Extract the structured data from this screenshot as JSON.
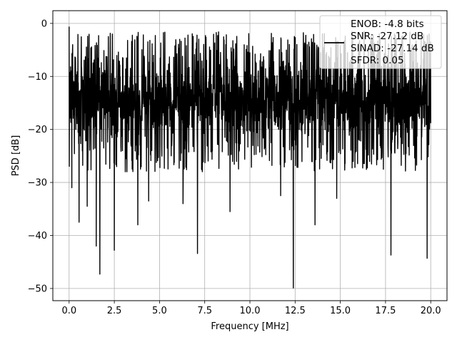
{
  "chart_data": {
    "type": "line",
    "title": "",
    "xlabel": "Frequency [MHz]",
    "ylabel": "PSD [dB]",
    "xlim": [
      -0.9,
      20.9
    ],
    "ylim": [
      -52.3,
      2.4
    ],
    "xticks": [
      0.0,
      2.5,
      5.0,
      7.5,
      10.0,
      12.5,
      15.0,
      17.5,
      20.0
    ],
    "xtick_labels": [
      "0.0",
      "2.5",
      "5.0",
      "7.5",
      "10.0",
      "12.5",
      "15.0",
      "17.5",
      "20.0"
    ],
    "yticks": [
      0,
      -10,
      -20,
      -30,
      -40,
      -50
    ],
    "ytick_labels": [
      "0",
      "−10",
      "−20",
      "−30",
      "−40",
      "−50"
    ],
    "grid": true,
    "legend_position": "top-right",
    "series": [
      {
        "name": "ENOB: -4.8 bits\nSNR: -27.12 dB\nSINAD: -27.14 dB\nSFDR: 0.05",
        "color": "#000000",
        "x_start": 0.0,
        "x_end": 20.0,
        "points": 2048,
        "envelope": {
          "upper_db": -1.5,
          "median_db": -14.5,
          "lower_db": -28.0
        },
        "peak": {
          "x": 0.0,
          "y": -0.6
        },
        "notable_dips": [
          {
            "x": 0.15,
            "y": -31.0
          },
          {
            "x": 0.55,
            "y": -37.5
          },
          {
            "x": 1.0,
            "y": -34.5
          },
          {
            "x": 1.5,
            "y": -42.0
          },
          {
            "x": 1.7,
            "y": -47.3
          },
          {
            "x": 2.5,
            "y": -42.8
          },
          {
            "x": 3.8,
            "y": -38.0
          },
          {
            "x": 4.4,
            "y": -33.5
          },
          {
            "x": 6.3,
            "y": -34.0
          },
          {
            "x": 7.1,
            "y": -43.4
          },
          {
            "x": 8.9,
            "y": -35.5
          },
          {
            "x": 11.7,
            "y": -32.5
          },
          {
            "x": 12.4,
            "y": -49.9
          },
          {
            "x": 13.6,
            "y": -38.0
          },
          {
            "x": 14.8,
            "y": -33.0
          },
          {
            "x": 17.8,
            "y": -43.7
          },
          {
            "x": 19.8,
            "y": -44.3
          }
        ]
      }
    ]
  }
}
